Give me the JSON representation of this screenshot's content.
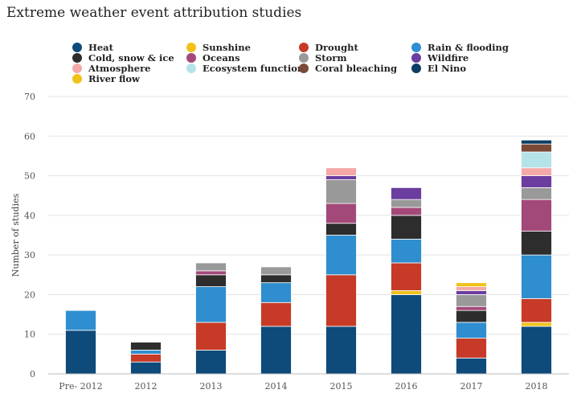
{
  "chart_data": {
    "type": "bar",
    "stacked": true,
    "title": "Extreme weather event attribution studies",
    "xlabel": "",
    "ylabel": "Number of studies",
    "ylim": [
      0,
      70
    ],
    "yticks": [
      0,
      10,
      20,
      30,
      40,
      50,
      60,
      70
    ],
    "grid": true,
    "legend_position": "top",
    "categories": [
      "Pre- 2012",
      "2012",
      "2013",
      "2014",
      "2015",
      "2016",
      "2017",
      "2018"
    ],
    "series": [
      {
        "name": "Heat",
        "color": "#0e4a7a",
        "values": [
          11,
          3,
          6,
          12,
          12,
          20,
          4,
          12
        ]
      },
      {
        "name": "Sunshine",
        "color": "#f0c21a",
        "values": [
          0,
          0,
          0,
          0,
          0,
          1,
          0,
          1
        ]
      },
      {
        "name": "Drought",
        "color": "#c63a27",
        "values": [
          0,
          2,
          7,
          6,
          13,
          7,
          5,
          6
        ]
      },
      {
        "name": "Rain & flooding",
        "color": "#2f8ecf",
        "values": [
          5,
          1,
          9,
          5,
          10,
          6,
          4,
          11
        ]
      },
      {
        "name": "Cold, snow & ice",
        "color": "#2d2d2d",
        "values": [
          0,
          2,
          3,
          2,
          3,
          6,
          3,
          6
        ]
      },
      {
        "name": "Oceans",
        "color": "#a3497a",
        "values": [
          0,
          0,
          1,
          0,
          5,
          2,
          1,
          8
        ]
      },
      {
        "name": "Storm",
        "color": "#999999",
        "values": [
          0,
          0,
          2,
          2,
          6,
          2,
          3,
          3
        ]
      },
      {
        "name": "Wildfire",
        "color": "#6a3d9e",
        "values": [
          0,
          0,
          0,
          0,
          1,
          3,
          1,
          3
        ]
      },
      {
        "name": "Atmosphere",
        "color": "#f4a9a8",
        "values": [
          0,
          0,
          0,
          0,
          2,
          0,
          1,
          2
        ]
      },
      {
        "name": "Ecosystem function",
        "color": "#b4e3e8",
        "values": [
          0,
          0,
          0,
          0,
          0,
          0,
          0,
          4
        ]
      },
      {
        "name": "Coral bleaching",
        "color": "#7a4a37",
        "values": [
          0,
          0,
          0,
          0,
          0,
          0,
          0,
          2
        ]
      },
      {
        "name": "El Nino",
        "color": "#0d3e63",
        "values": [
          0,
          0,
          0,
          0,
          0,
          0,
          0,
          1
        ]
      },
      {
        "name": "River flow",
        "color": "#f0c21a",
        "values": [
          0,
          0,
          0,
          0,
          0,
          0,
          1,
          0
        ]
      }
    ]
  }
}
